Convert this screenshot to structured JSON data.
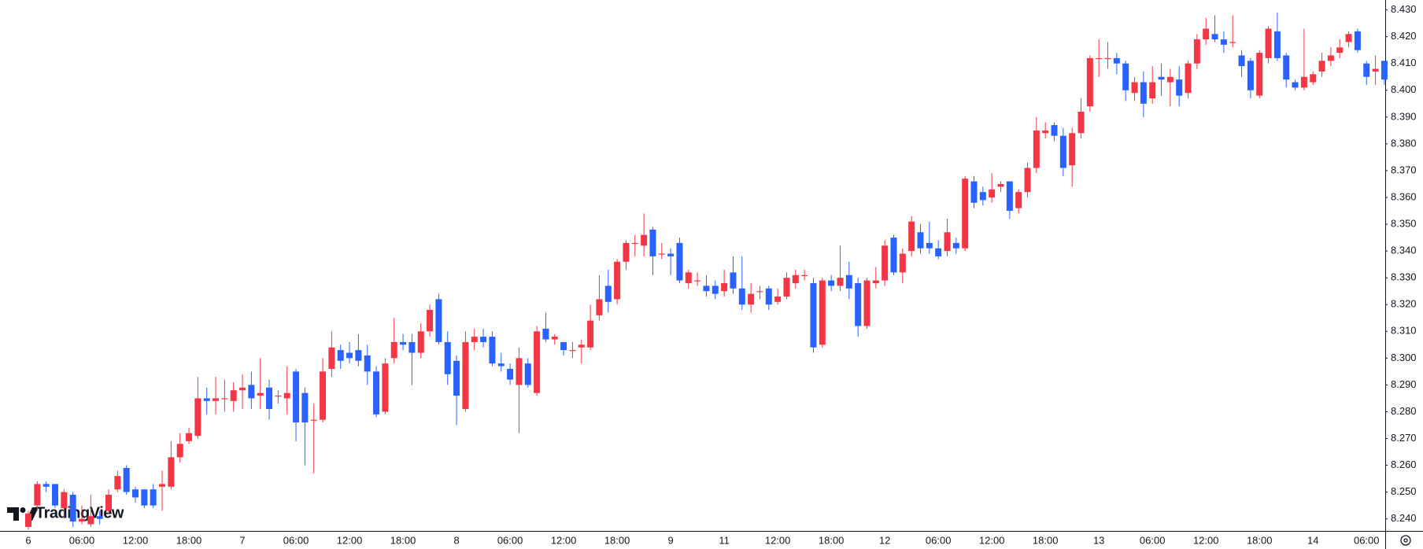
{
  "chart_data": {
    "type": "candlestick",
    "watermark": "TradingView",
    "categories": [
      "6",
      null,
      null,
      null,
      null,
      null,
      "06:00",
      null,
      null,
      null,
      null,
      null,
      "12:00",
      null,
      null,
      null,
      null,
      null,
      "18:00",
      null,
      null,
      null,
      null,
      null,
      "7",
      null,
      null,
      null,
      null,
      null,
      "06:00",
      null,
      null,
      null,
      null,
      null,
      "12:00",
      null,
      null,
      null,
      null,
      null,
      "18:00",
      null,
      null,
      null,
      null,
      null,
      "8",
      null,
      null,
      null,
      null,
      null,
      "06:00",
      null,
      null,
      null,
      null,
      null,
      "12:00",
      null,
      null,
      null,
      null,
      null,
      "18:00",
      null,
      null,
      null,
      null,
      null,
      "9",
      null,
      null,
      null,
      null,
      null,
      "11",
      null,
      null,
      null,
      null,
      null,
      "12:00",
      null,
      null,
      null,
      null,
      null,
      "18:00",
      null,
      null,
      null,
      null,
      null,
      "12",
      null,
      null,
      null,
      null,
      null,
      "06:00",
      null,
      null,
      null,
      null,
      null,
      "12:00",
      null,
      null,
      null,
      null,
      null,
      "18:00",
      null,
      null,
      null,
      null,
      null,
      "13",
      null,
      null,
      null,
      null,
      null,
      "06:00",
      null,
      null,
      null,
      null,
      null,
      "12:00",
      null,
      null,
      null,
      null,
      null,
      "18:00",
      null,
      null,
      null,
      null,
      null,
      "14",
      null,
      null,
      null,
      null,
      null,
      "06:00",
      null,
      null
    ],
    "open": [
      8.237,
      8.245,
      8.253,
      8.253,
      8.244,
      8.249,
      8.239,
      8.238,
      8.241,
      8.243,
      8.251,
      8.259,
      8.251,
      8.251,
      8.251,
      8.252,
      8.252,
      8.263,
      8.269,
      8.271,
      8.285,
      8.284,
      8.285,
      8.284,
      8.288,
      8.29,
      8.286,
      8.289,
      8.286,
      8.285,
      8.295,
      8.287,
      8.277,
      8.277,
      8.296,
      8.303,
      8.302,
      8.303,
      8.301,
      8.295,
      8.28,
      8.3,
      8.306,
      8.306,
      8.302,
      8.31,
      8.322,
      8.306,
      8.299,
      8.281,
      8.306,
      8.308,
      8.308,
      8.298,
      8.296,
      8.29,
      8.298,
      8.287,
      8.311,
      8.307,
      8.306,
      8.303,
      8.304,
      8.304,
      8.316,
      8.327,
      8.322,
      8.336,
      8.343,
      8.342,
      8.348,
      8.339,
      8.339,
      8.343,
      8.328,
      8.329,
      8.327,
      8.327,
      8.325,
      8.332,
      8.326,
      8.32,
      8.325,
      8.326,
      8.321,
      8.323,
      8.328,
      8.331,
      8.328,
      8.305,
      8.329,
      8.327,
      8.331,
      8.328,
      8.312,
      8.328,
      8.329,
      8.345,
      8.332,
      8.34,
      8.347,
      8.343,
      8.341,
      8.34,
      8.343,
      8.341,
      8.366,
      8.362,
      8.36,
      8.364,
      8.366,
      8.356,
      8.362,
      8.371,
      8.384,
      8.387,
      8.383,
      8.372,
      8.384,
      8.394,
      8.412,
      8.412,
      8.412,
      8.41,
      8.399,
      8.403,
      8.397,
      8.405,
      8.403,
      8.404,
      8.399,
      8.41,
      8.419,
      8.421,
      8.419,
      8.418,
      8.413,
      8.411,
      8.398,
      8.412,
      8.422,
      8.413,
      8.403,
      8.401,
      8.403,
      8.407,
      8.411,
      8.414,
      8.418,
      8.422,
      8.41,
      8.407,
      8.411
    ],
    "high": [
      8.243,
      8.254,
      8.254,
      8.253,
      8.251,
      8.25,
      8.245,
      8.249,
      8.243,
      8.251,
      8.258,
      8.26,
      8.252,
      8.251,
      8.253,
      8.258,
      8.269,
      8.272,
      8.274,
      8.293,
      8.289,
      8.293,
      8.292,
      8.291,
      8.294,
      8.295,
      8.3,
      8.292,
      8.288,
      8.297,
      8.296,
      8.289,
      8.283,
      8.3,
      8.31,
      8.305,
      8.306,
      8.309,
      8.305,
      8.297,
      8.3,
      8.315,
      8.309,
      8.309,
      8.313,
      8.32,
      8.324,
      8.31,
      8.301,
      8.31,
      8.311,
      8.311,
      8.31,
      8.302,
      8.298,
      8.304,
      8.3,
      8.312,
      8.317,
      8.309,
      8.306,
      8.306,
      8.307,
      8.32,
      8.331,
      8.333,
      8.337,
      8.344,
      8.346,
      8.354,
      8.349,
      8.343,
      8.341,
      8.345,
      8.333,
      8.332,
      8.331,
      8.329,
      8.333,
      8.338,
      8.338,
      8.328,
      8.327,
      8.327,
      8.326,
      8.332,
      8.333,
      8.333,
      8.33,
      8.33,
      8.331,
      8.342,
      8.336,
      8.33,
      8.33,
      8.334,
      8.344,
      8.346,
      8.341,
      8.353,
      8.35,
      8.351,
      8.344,
      8.352,
      8.345,
      8.368,
      8.368,
      8.364,
      8.369,
      8.366,
      8.366,
      8.363,
      8.373,
      8.39,
      8.388,
      8.388,
      8.386,
      8.386,
      8.397,
      8.413,
      8.419,
      8.418,
      8.414,
      8.411,
      8.405,
      8.407,
      8.409,
      8.41,
      8.408,
      8.409,
      8.411,
      8.421,
      8.427,
      8.428,
      8.422,
      8.428,
      8.415,
      8.412,
      8.415,
      8.424,
      8.429,
      8.414,
      8.404,
      8.423,
      8.407,
      8.414,
      8.416,
      8.419,
      8.422,
      8.423,
      8.411,
      8.413,
      8.411
    ],
    "low": [
      8.236,
      8.243,
      8.25,
      8.244,
      8.24,
      8.237,
      8.238,
      8.237,
      8.238,
      8.242,
      8.25,
      8.249,
      8.246,
      8.244,
      8.244,
      8.243,
      8.251,
      8.261,
      8.268,
      8.27,
      8.279,
      8.279,
      8.28,
      8.28,
      8.281,
      8.281,
      8.281,
      8.277,
      8.283,
      8.279,
      8.269,
      8.26,
      8.257,
      8.276,
      8.293,
      8.296,
      8.298,
      8.297,
      8.29,
      8.278,
      8.279,
      8.298,
      8.303,
      8.29,
      8.3,
      8.308,
      8.305,
      8.29,
      8.275,
      8.28,
      8.303,
      8.304,
      8.297,
      8.295,
      8.29,
      8.272,
      8.289,
      8.286,
      8.306,
      8.305,
      8.301,
      8.3,
      8.298,
      8.303,
      8.314,
      8.317,
      8.32,
      8.333,
      8.338,
      8.338,
      8.331,
      8.337,
      8.331,
      8.328,
      8.326,
      8.327,
      8.323,
      8.322,
      8.323,
      8.324,
      8.318,
      8.317,
      8.322,
      8.318,
      8.32,
      8.322,
      8.326,
      8.329,
      8.302,
      8.304,
      8.325,
      8.325,
      8.322,
      8.308,
      8.311,
      8.326,
      8.327,
      8.331,
      8.328,
      8.338,
      8.339,
      8.339,
      8.337,
      8.338,
      8.339,
      8.34,
      8.356,
      8.357,
      8.358,
      8.362,
      8.352,
      8.354,
      8.36,
      8.369,
      8.382,
      8.381,
      8.368,
      8.364,
      8.382,
      8.392,
      8.405,
      8.408,
      8.406,
      8.396,
      8.396,
      8.39,
      8.395,
      8.398,
      8.394,
      8.394,
      8.397,
      8.408,
      8.417,
      8.418,
      8.414,
      8.416,
      8.405,
      8.397,
      8.397,
      8.41,
      8.411,
      8.401,
      8.4,
      8.4,
      8.402,
      8.405,
      8.409,
      8.412,
      8.416,
      8.414,
      8.402,
      8.402,
      8.402
    ],
    "close": [
      8.242,
      8.253,
      8.252,
      8.245,
      8.25,
      8.239,
      8.24,
      8.241,
      8.24,
      8.249,
      8.256,
      8.25,
      8.248,
      8.245,
      8.245,
      8.253,
      8.263,
      8.268,
      8.272,
      8.285,
      8.284,
      8.285,
      8.285,
      8.288,
      8.289,
      8.285,
      8.287,
      8.281,
      8.286,
      8.287,
      8.276,
      8.276,
      8.277,
      8.295,
      8.304,
      8.299,
      8.3,
      8.299,
      8.295,
      8.279,
      8.298,
      8.306,
      8.305,
      8.302,
      8.31,
      8.318,
      8.306,
      8.294,
      8.286,
      8.306,
      8.308,
      8.306,
      8.298,
      8.297,
      8.292,
      8.3,
      8.29,
      8.31,
      8.307,
      8.308,
      8.303,
      8.303,
      8.305,
      8.314,
      8.322,
      8.321,
      8.336,
      8.343,
      8.343,
      8.346,
      8.338,
      8.339,
      8.338,
      8.329,
      8.332,
      8.329,
      8.325,
      8.324,
      8.328,
      8.326,
      8.32,
      8.324,
      8.325,
      8.32,
      8.323,
      8.33,
      8.331,
      8.331,
      8.304,
      8.329,
      8.327,
      8.33,
      8.326,
      8.312,
      8.329,
      8.329,
      8.342,
      8.332,
      8.339,
      8.351,
      8.341,
      8.341,
      8.338,
      8.347,
      8.341,
      8.367,
      8.358,
      8.359,
      8.363,
      8.365,
      8.355,
      8.362,
      8.371,
      8.385,
      8.385,
      8.383,
      8.371,
      8.384,
      8.392,
      8.412,
      8.412,
      8.412,
      8.41,
      8.4,
      8.403,
      8.395,
      8.403,
      8.404,
      8.405,
      8.398,
      8.41,
      8.419,
      8.423,
      8.419,
      8.417,
      8.418,
      8.409,
      8.4,
      8.414,
      8.423,
      8.412,
      8.404,
      8.401,
      8.405,
      8.406,
      8.411,
      8.413,
      8.416,
      8.421,
      8.415,
      8.405,
      8.408,
      8.404
    ],
    "up_color": "#f23645",
    "down_color": "#2962ff",
    "grid": false,
    "ylim": [
      8.2355,
      8.4337
    ],
    "yticks": [
      {
        "value": 8.24,
        "label": "8.240"
      },
      {
        "value": 8.25,
        "label": "8.250"
      },
      {
        "value": 8.26,
        "label": "8.260"
      },
      {
        "value": 8.27,
        "label": "8.270"
      },
      {
        "value": 8.28,
        "label": "8.280"
      },
      {
        "value": 8.29,
        "label": "8.290"
      },
      {
        "value": 8.3,
        "label": "8.300"
      },
      {
        "value": 8.31,
        "label": "8.310"
      },
      {
        "value": 8.32,
        "label": "8.320"
      },
      {
        "value": 8.33,
        "label": "8.330"
      },
      {
        "value": 8.34,
        "label": "8.340"
      },
      {
        "value": 8.35,
        "label": "8.350"
      },
      {
        "value": 8.36,
        "label": "8.360"
      },
      {
        "value": 8.37,
        "label": "8.370"
      },
      {
        "value": 8.38,
        "label": "8.380"
      },
      {
        "value": 8.39,
        "label": "8.390"
      },
      {
        "value": 8.4,
        "label": "8.400"
      },
      {
        "value": 8.41,
        "label": "8.410"
      },
      {
        "value": 8.42,
        "label": "8.420"
      },
      {
        "value": 8.43,
        "label": "8.430"
      }
    ]
  }
}
